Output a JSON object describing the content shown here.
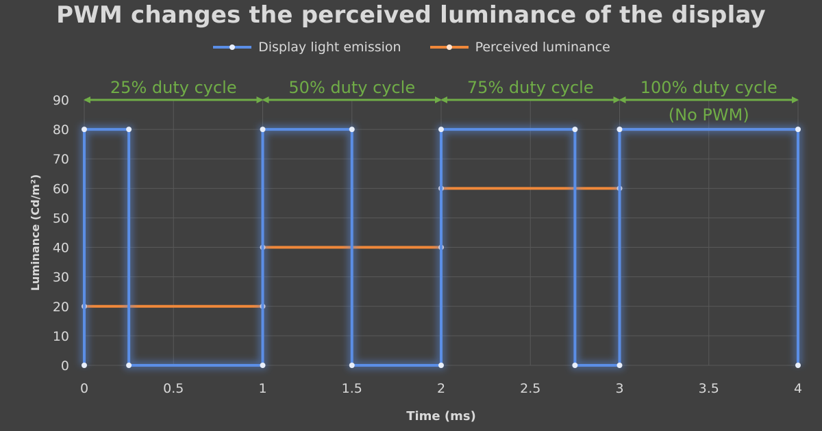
{
  "chart_data": {
    "type": "line",
    "title": "PWM changes the perceived luminance of the display",
    "xlabel": "Time (ms)",
    "ylabel": "Luminance (Cd/m²)",
    "xlim": [
      0,
      4
    ],
    "ylim": [
      0,
      90
    ],
    "x_ticks": [
      "0",
      "0.5",
      "1",
      "1.5",
      "2",
      "2.5",
      "3",
      "3.5",
      "4"
    ],
    "y_ticks": [
      "0",
      "10",
      "20",
      "30",
      "40",
      "50",
      "60",
      "70",
      "80",
      "90"
    ],
    "grid": true,
    "legend_position": "top",
    "series": [
      {
        "name": "Display light emission",
        "color": "#5b8ee6",
        "x": [
          0,
          0,
          0.25,
          0.25,
          1,
          1,
          1.5,
          1.5,
          2,
          2,
          2.75,
          2.75,
          3,
          3,
          4,
          4
        ],
        "y": [
          0,
          80,
          80,
          0,
          0,
          80,
          80,
          0,
          0,
          80,
          80,
          0,
          0,
          80,
          80,
          0
        ]
      },
      {
        "name": "Perceived luminance",
        "color": "#f0883a",
        "x": [
          0,
          1,
          1,
          2,
          2,
          3,
          3,
          4
        ],
        "y": [
          20,
          20,
          40,
          40,
          60,
          60,
          80,
          80
        ]
      }
    ],
    "annotations": [
      {
        "text": "25% duty cycle",
        "x_start": 0,
        "x_end": 1,
        "y": 90
      },
      {
        "text": "50% duty cycle",
        "x_start": 1,
        "x_end": 2,
        "y": 90
      },
      {
        "text": "75% duty cycle",
        "x_start": 2,
        "x_end": 3,
        "y": 90
      },
      {
        "text": "100% duty cycle",
        "subtext": "(No PWM)",
        "x_start": 3,
        "x_end": 4,
        "y": 90
      }
    ],
    "annotation_color": "#70ad47"
  }
}
